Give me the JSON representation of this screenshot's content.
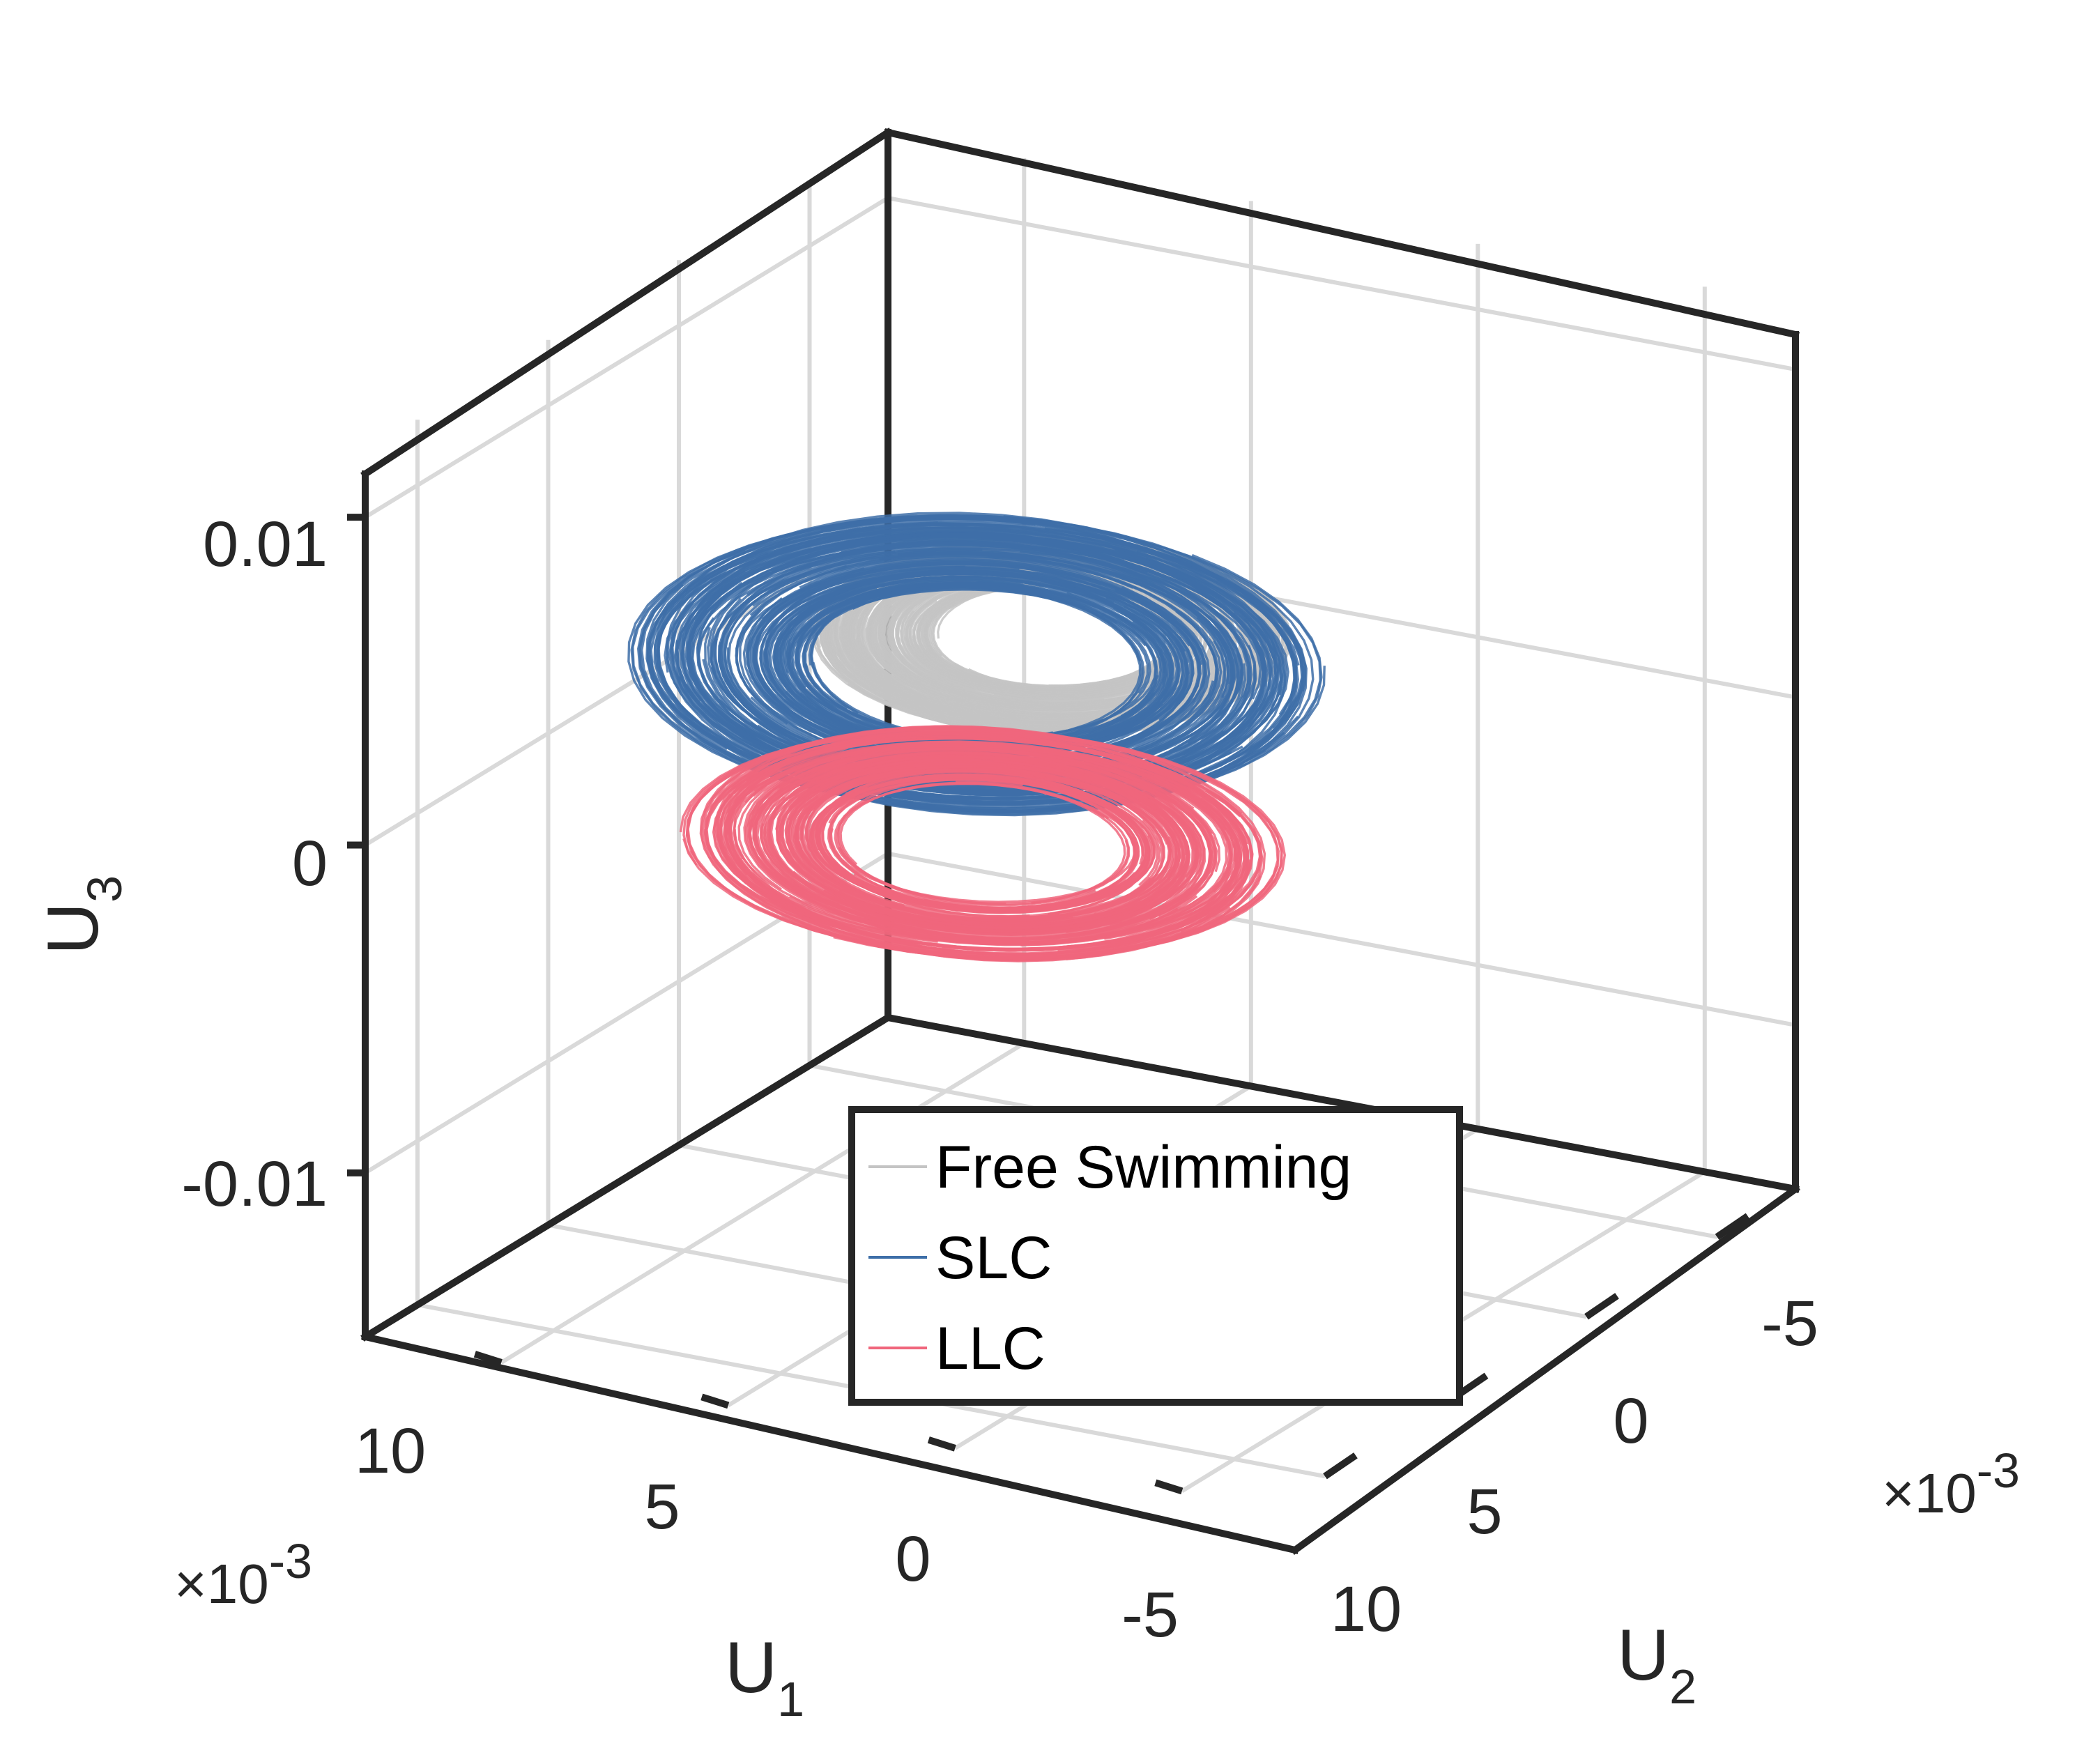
{
  "chart_data": {
    "type": "line",
    "projection": "3d",
    "title": "",
    "axes": {
      "x": {
        "label": "U",
        "label_subscript": "1",
        "ticks": [
          "10",
          "5",
          "0",
          "-5"
        ],
        "tick_values": [
          0.01,
          0.005,
          0,
          -0.005
        ],
        "multiplier": "×10",
        "multiplier_exp": "-3",
        "lim": [
          -0.008,
          0.012
        ]
      },
      "y": {
        "label": "U",
        "label_subscript": "2",
        "ticks": [
          "-5",
          "0",
          "5",
          "10"
        ],
        "tick_values": [
          -0.005,
          0,
          0.005,
          0.01
        ],
        "multiplier": "×10",
        "multiplier_exp": "-3",
        "lim": [
          -0.008,
          0.012
        ]
      },
      "z": {
        "label": "U",
        "label_subscript": "3",
        "ticks": [
          "0.01",
          "0",
          "-0.01"
        ],
        "tick_values": [
          0.01,
          0,
          -0.01
        ],
        "lim": [
          -0.015,
          0.012
        ]
      }
    },
    "grid": true,
    "box": true,
    "legend": {
      "position": "bottom-center"
    },
    "series": [
      {
        "name": "Free Swimming",
        "color": "#c4c4c4",
        "center": [
          0.0005,
          0.0005,
          0.003
        ],
        "radius": [
          0.0042,
          0.0045,
          0.0048
        ],
        "tilt": 0.45,
        "loops": 220
      },
      {
        "name": "SLC",
        "color": "#3e6fa8",
        "center": [
          0.0025,
          0.0,
          0.003
        ],
        "radius": [
          0.0068,
          0.0065,
          0.0072
        ],
        "tilt": 0.55,
        "loops": 160
      },
      {
        "name": "LLC",
        "color": "#f0667c",
        "center": [
          0.004,
          0.001,
          -0.0015
        ],
        "radius": [
          0.0062,
          0.0055,
          0.0058
        ],
        "tilt": 0.6,
        "loops": 150
      }
    ]
  }
}
